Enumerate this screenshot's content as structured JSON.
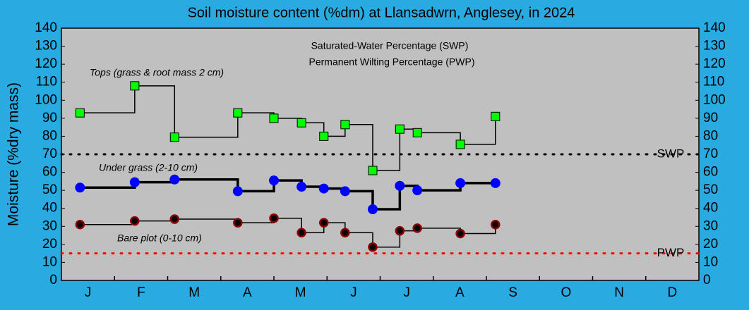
{
  "chart_data": {
    "type": "step-line",
    "title": "Soil moisture content (%dm)  at Llansadwrn, Anglesey, in 2024",
    "y_label": "Moisture (%dry mass)",
    "categories": [
      "J",
      "F",
      "M",
      "A",
      "M",
      "J",
      "J",
      "A",
      "S",
      "O",
      "N",
      "D"
    ],
    "xlim": [
      0,
      12
    ],
    "x": [
      0.35,
      1.38,
      2.13,
      3.32,
      4.0,
      4.52,
      4.94,
      5.34,
      5.86,
      6.37,
      6.7,
      7.51,
      8.17
    ],
    "ylim": [
      0,
      140
    ],
    "yticks": [
      0,
      10,
      20,
      30,
      40,
      50,
      60,
      70,
      80,
      90,
      100,
      110,
      120,
      130,
      140
    ],
    "series": [
      {
        "name": "Tops (grass & root mass 2 cm)",
        "color": "#00ff00",
        "marker": "square",
        "line_width": 1.5,
        "values": [
          93,
          108,
          79.5,
          93,
          90,
          87.5,
          80,
          86.5,
          61,
          84,
          82,
          75.5,
          91
        ]
      },
      {
        "name": "Under grass (2-10 cm)",
        "color": "#0000ff",
        "marker": "circle",
        "line_width": 3.5,
        "values": [
          51.5,
          54.5,
          56,
          49.5,
          55.5,
          52,
          51,
          49.5,
          39.5,
          52.5,
          50,
          54,
          54
        ]
      },
      {
        "name": "Bare plot (0-10 cm)",
        "color": "#8b0000",
        "marker": "circle",
        "line_width": 1.5,
        "values": [
          31,
          33,
          34,
          32,
          34.5,
          26.5,
          32,
          26.5,
          18.5,
          27.5,
          29,
          26,
          31
        ]
      }
    ],
    "reference_lines": [
      {
        "name": "SWP",
        "value": 70,
        "color": "#000000"
      },
      {
        "name": "PWP",
        "value": 15,
        "color": "#ff0000"
      }
    ],
    "annotations": [
      "Saturated-Water Percentage (SWP)",
      "Permanent Wilting Percentage (PWP)"
    ]
  }
}
